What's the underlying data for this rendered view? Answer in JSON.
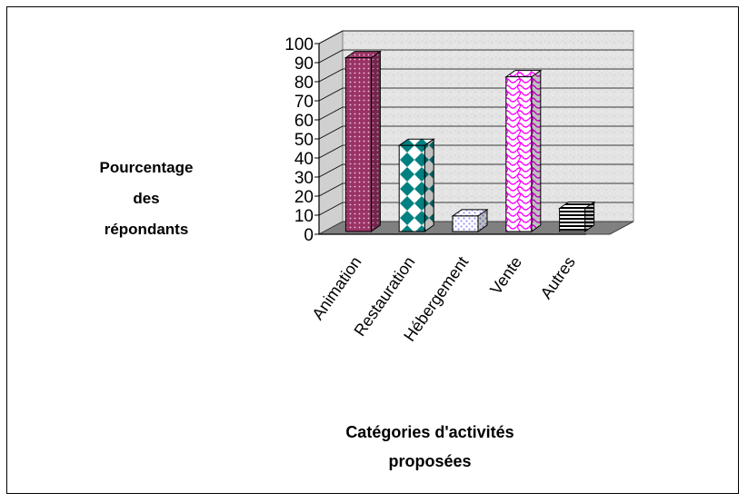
{
  "chart_data": {
    "type": "bar",
    "categories": [
      "Animation",
      "Restauration",
      "Hébergement",
      "Vente",
      "Autres"
    ],
    "values": [
      94,
      48,
      11,
      84,
      15
    ],
    "xlabel_lines": [
      "Catégories d'activités",
      "proposées"
    ],
    "ylabel_lines": [
      "Pourcentage",
      "des",
      "répondants"
    ],
    "ylim": [
      0,
      100
    ],
    "yticks": [
      0,
      10,
      20,
      30,
      40,
      50,
      60,
      70,
      80,
      90,
      100
    ],
    "grid": true,
    "style": "3d-column",
    "colors": {
      "Animation": "#993366",
      "Restauration": "#008080",
      "Hébergement": "#ccccff",
      "Vente": "#ff00ff",
      "Autres": "#000000"
    }
  }
}
